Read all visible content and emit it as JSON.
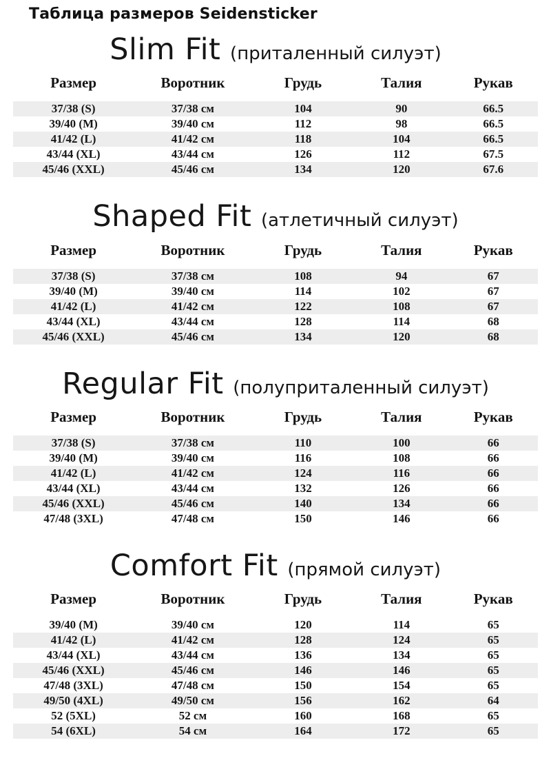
{
  "page_title": "Таблица размеров Seidensticker",
  "columns": [
    "Размер",
    "Воротник",
    "Грудь",
    "Талия",
    "Рукав"
  ],
  "colors": {
    "stripe": "#ededed",
    "text": "#141414",
    "background": "#ffffff"
  },
  "sections": [
    {
      "title": "Slim Fit",
      "subtitle": "(приталенный силуэт)",
      "zebra_start": 0,
      "rows": [
        [
          "37/38 (S)",
          "37/38 см",
          "104",
          "90",
          "66.5"
        ],
        [
          "39/40 (M)",
          "39/40 см",
          "112",
          "98",
          "66.5"
        ],
        [
          "41/42 (L)",
          "41/42 см",
          "118",
          "104",
          "66.5"
        ],
        [
          "43/44 (XL)",
          "43/44 см",
          "126",
          "112",
          "67.5"
        ],
        [
          "45/46 (XXL)",
          "45/46 см",
          "134",
          "120",
          "67.6"
        ]
      ]
    },
    {
      "title": "Shaped Fit",
      "subtitle": "(атлетичный силуэт)",
      "zebra_start": 0,
      "rows": [
        [
          "37/38 (S)",
          "37/38 см",
          "108",
          "94",
          "67"
        ],
        [
          "39/40 (M)",
          "39/40 см",
          "114",
          "102",
          "67"
        ],
        [
          "41/42 (L)",
          "41/42 см",
          "122",
          "108",
          "67"
        ],
        [
          "43/44 (XL)",
          "43/44 см",
          "128",
          "114",
          "68"
        ],
        [
          "45/46 (XXL)",
          "45/46 см",
          "134",
          "120",
          "68"
        ]
      ]
    },
    {
      "title": "Regular Fit",
      "subtitle": "(полуприталенный силуэт)",
      "zebra_start": 0,
      "rows": [
        [
          "37/38 (S)",
          "37/38 см",
          "110",
          "100",
          "66"
        ],
        [
          "39/40 (M)",
          "39/40 см",
          "116",
          "108",
          "66"
        ],
        [
          "41/42 (L)",
          "41/42 см",
          "124",
          "116",
          "66"
        ],
        [
          "43/44 (XL)",
          "43/44 см",
          "132",
          "126",
          "66"
        ],
        [
          "45/46 (XXL)",
          "45/46 см",
          "140",
          "134",
          "66"
        ],
        [
          "47/48 (3XL)",
          "47/48 см",
          "150",
          "146",
          "66"
        ]
      ]
    },
    {
      "title": "Comfort Fit",
      "subtitle": "(прямой силуэт)",
      "zebra_start": 1,
      "rows": [
        [
          "39/40 (M)",
          "39/40 см",
          "120",
          "114",
          "65"
        ],
        [
          "41/42 (L)",
          "41/42 см",
          "128",
          "124",
          "65"
        ],
        [
          "43/44 (XL)",
          "43/44 см",
          "136",
          "134",
          "65"
        ],
        [
          "45/46 (XXL)",
          "45/46 см",
          "146",
          "146",
          "65"
        ],
        [
          "47/48 (3XL)",
          "47/48 см",
          "150",
          "154",
          "65"
        ],
        [
          "49/50 (4XL)",
          "49/50 см",
          "156",
          "162",
          "64"
        ],
        [
          "52 (5XL)",
          "52 см",
          "160",
          "168",
          "65"
        ],
        [
          "54 (6XL)",
          "54 см",
          "164",
          "172",
          "65"
        ]
      ]
    }
  ]
}
